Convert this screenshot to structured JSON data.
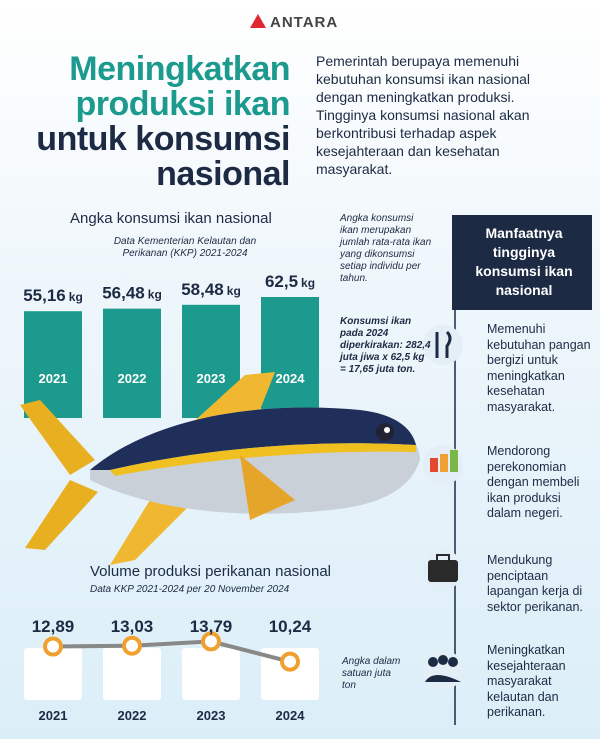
{
  "header": {
    "logo": "ANTARA",
    "title_lines": [
      "Meningkatkan",
      "produksi ikan",
      "untuk konsumsi",
      "nasional"
    ],
    "intro": "Pemerintah berupaya memenuhi kebutuhan konsumsi ikan nasional dengan meningkatkan produksi. Tingginya konsumsi nasional akan berkontribusi terhadap aspek kesejahteraan dan kesehatan masyarakat."
  },
  "chart_data": [
    {
      "type": "bar",
      "title": "Angka konsumsi ikan nasional",
      "subtitle": "Data Kementerian Kelautan dan Perikanan (KKP) 2021-2024",
      "categories": [
        "2021",
        "2022",
        "2023",
        "2024"
      ],
      "values": [
        55.16,
        56.48,
        58.48,
        62.5
      ],
      "value_labels": [
        "55,16",
        "56,48",
        "58,48",
        "62,5"
      ],
      "unit": "kg",
      "color": "#1b9a8d"
    },
    {
      "type": "line",
      "title": "Volume produksi perikanan nasional",
      "subtitle": "Data KKP  2021-2024 per 20 November 2024",
      "categories": [
        "2021",
        "2022",
        "2023",
        "2024"
      ],
      "values": [
        12.89,
        13.03,
        13.79,
        10.24
      ],
      "value_labels": [
        "12,89",
        "13,03",
        "13,79",
        "10,24"
      ],
      "color": "#f0a030"
    }
  ],
  "notes": [
    "Angka konsumsi ikan merupakan jumlah rata-rata ikan yang dikonsumsi setiap individu per tahun.",
    "Konsumsi ikan pada 2024 diperkirakan: 282,4 juta jiwa x 62,5 kg = 17,65 juta ton.",
    "Angka dalam satuan juta ton"
  ],
  "benefits": {
    "title": "Manfaatnya tingginya konsumsi ikan nasional",
    "items": [
      "Memenuhi kebutuhan pangan bergizi untuk meningkatkan kesehatan masyarakat.",
      "Mendorong perekonomian dengan membeli ikan produksi dalam negeri.",
      "Mendukung penciptaan lapangan kerja di sektor perikanan.",
      "Meningkatkan kesejahteraan masyarakat kelautan dan perikanan."
    ]
  }
}
